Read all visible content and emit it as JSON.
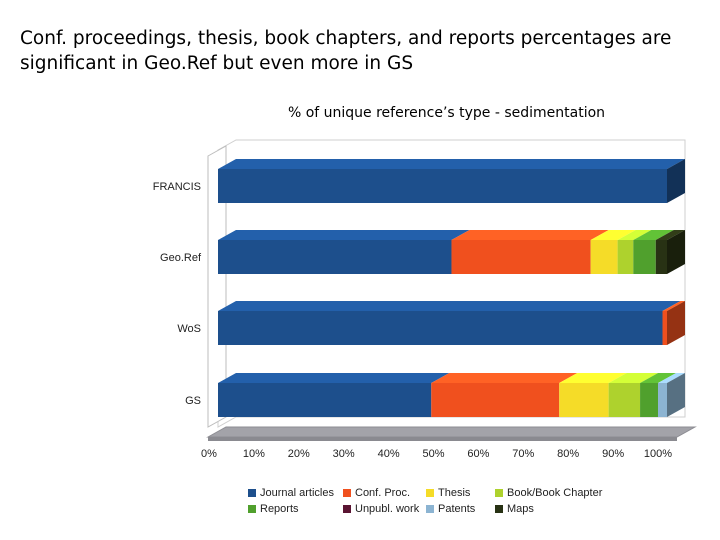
{
  "slide": {
    "title": "Conf. proceedings, thesis, book chapters, and reports percentages are significant in Geo.Ref but even more in GS"
  },
  "chart_data": {
    "type": "bar",
    "orientation": "horizontal",
    "stacked": true,
    "percent_stacked": true,
    "three_d": true,
    "title": "% of unique reference’s type - sedimentation",
    "xlabel": "",
    "ylabel": "",
    "xlim": [
      0,
      100
    ],
    "x_tick_labels": [
      "0%",
      "10%",
      "20%",
      "30%",
      "40%",
      "50%",
      "60%",
      "70%",
      "80%",
      "90%",
      "100%"
    ],
    "grid": false,
    "legend_position": "bottom",
    "categories": [
      "FRANCIS",
      "Geo.Ref",
      "WoS",
      "GS"
    ],
    "series": [
      {
        "name": "Journal articles",
        "color": "#1d4f8c",
        "values": [
          100,
          52,
          99,
          47.5
        ]
      },
      {
        "name": "Conf. Proc.",
        "color": "#f0501e",
        "values": [
          0,
          31,
          1,
          28.5
        ]
      },
      {
        "name": "Thesis",
        "color": "#f5dc28",
        "values": [
          0,
          6,
          0,
          11
        ]
      },
      {
        "name": "Book/Book Chapter",
        "color": "#aed22d",
        "values": [
          0,
          3.5,
          0,
          7
        ]
      },
      {
        "name": "Reports",
        "color": "#50a02d",
        "values": [
          0,
          5,
          0,
          4
        ]
      },
      {
        "name": "Unpubl. work",
        "color": "#5a1432",
        "values": [
          0,
          0,
          0,
          0
        ]
      },
      {
        "name": "Patents",
        "color": "#8cb4d2",
        "values": [
          0,
          0,
          0,
          2
        ]
      },
      {
        "name": "Maps",
        "color": "#283214",
        "values": [
          0,
          2.5,
          0,
          0
        ]
      }
    ]
  }
}
